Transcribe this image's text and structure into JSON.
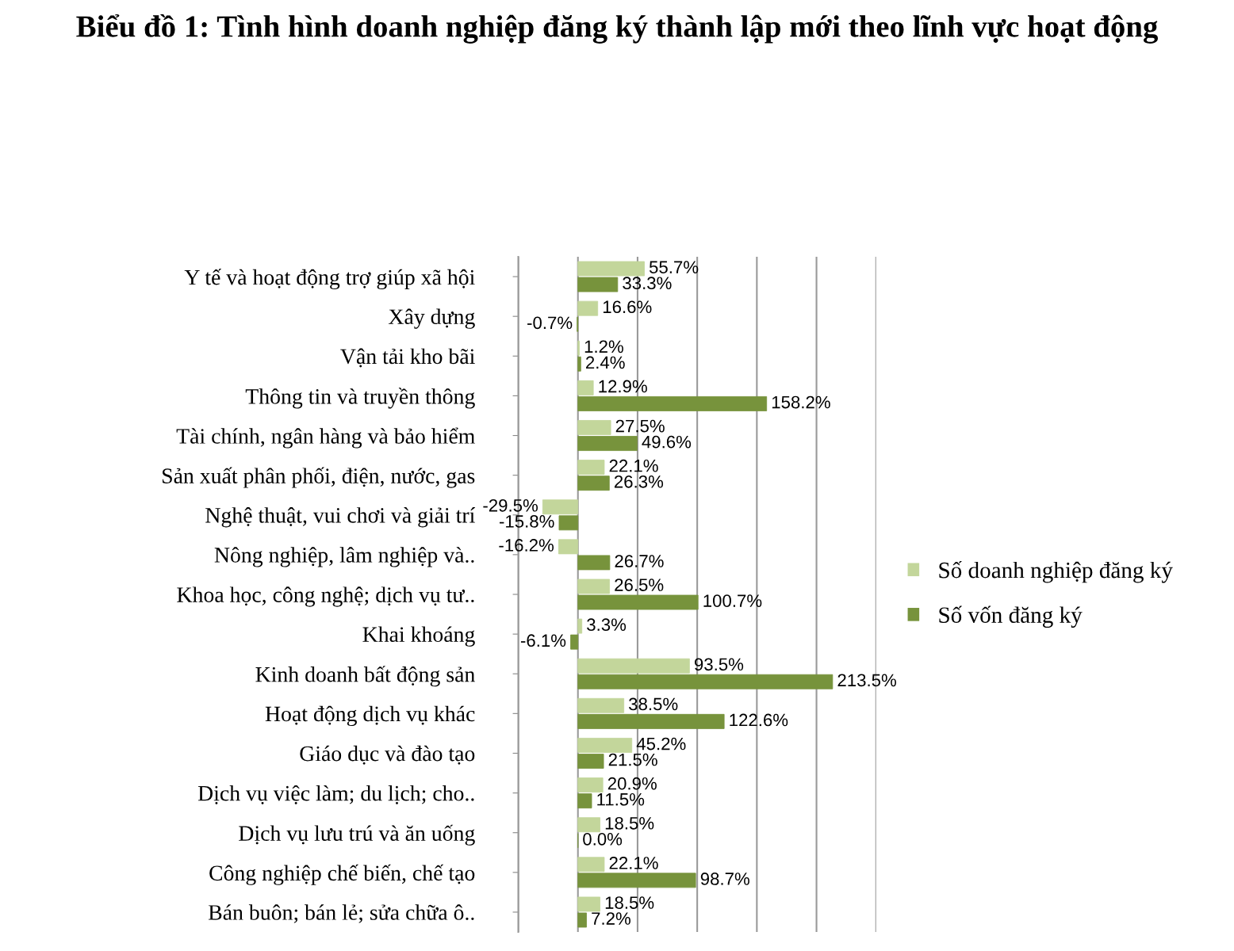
{
  "chart_data": {
    "type": "bar",
    "orientation": "horizontal",
    "title": "Biểu đồ 1: Tình hình doanh nghiệp đăng ký thành lập mới theo lĩnh vực hoạt động",
    "categories": [
      "Y tế và hoạt động trợ giúp xã hội",
      "Xây dựng",
      "Vận tải kho bãi",
      "Thông tin và truyền thông",
      "Tài chính, ngân hàng và bảo hiểm",
      "Sản xuất phân phối, điện, nước, gas",
      "Nghệ thuật, vui chơi và giải trí",
      "Nông nghiệp, lâm nghiệp và..",
      "Khoa học, công nghệ; dịch vụ tư..",
      "Khai khoáng",
      "Kinh doanh bất động sản",
      "Hoạt động dịch vụ khác",
      "Giáo dục và đào tạo",
      "Dịch vụ việc làm; du lịch; cho..",
      "Dịch vụ lưu trú và ăn uống",
      "Công nghiệp chế biến, chế tạo",
      "Bán buôn; bán lẻ; sửa chữa ô.."
    ],
    "series": [
      {
        "name": "Số doanh nghiệp đăng ký",
        "color": "#c3d69b",
        "values": [
          55.7,
          16.6,
          1.2,
          12.9,
          27.5,
          22.1,
          -29.5,
          -16.2,
          26.5,
          3.3,
          93.5,
          38.5,
          45.2,
          20.9,
          18.5,
          22.1,
          18.5
        ],
        "value_labels": [
          "55.7%",
          "16.6%",
          "1.2%",
          "12.9%",
          "27.5%",
          "22.1%",
          "-29.5%",
          "-16.2%",
          "26.5%",
          "3.3%",
          "93.5%",
          "38.5%",
          "45.2%",
          "20.9%",
          "18.5%",
          "22.1%",
          "18.5%"
        ]
      },
      {
        "name": "Số vốn đăng ký",
        "color": "#77933c",
        "values": [
          33.3,
          -0.7,
          2.4,
          158.2,
          49.6,
          26.3,
          -15.8,
          26.7,
          100.7,
          -6.1,
          213.5,
          122.6,
          21.5,
          11.5,
          0.0,
          98.7,
          7.2
        ],
        "value_labels": [
          "33.3%",
          "-0.7%",
          "2.4%",
          "158.2%",
          "49.6%",
          "26.3%",
          "-15.8%",
          "26.7%",
          "100.7%",
          "-6.1%",
          "213.5%",
          "122.6%",
          "21.5%",
          "11.5%",
          "0.0%",
          "98.7%",
          "7.2%"
        ]
      }
    ],
    "xlim": [
      -50,
      250
    ],
    "xticks": [
      {
        "value": -50,
        "label": null
      },
      {
        "value": 0,
        "label": null
      },
      {
        "value": 50,
        "label": null
      },
      {
        "value": 100,
        "label": null
      },
      {
        "value": 150,
        "label": null
      },
      {
        "value": 200,
        "label": null
      },
      {
        "value": 250,
        "label": null
      }
    ],
    "tick_labels": "y",
    "grid": "x",
    "legend": "right"
  }
}
